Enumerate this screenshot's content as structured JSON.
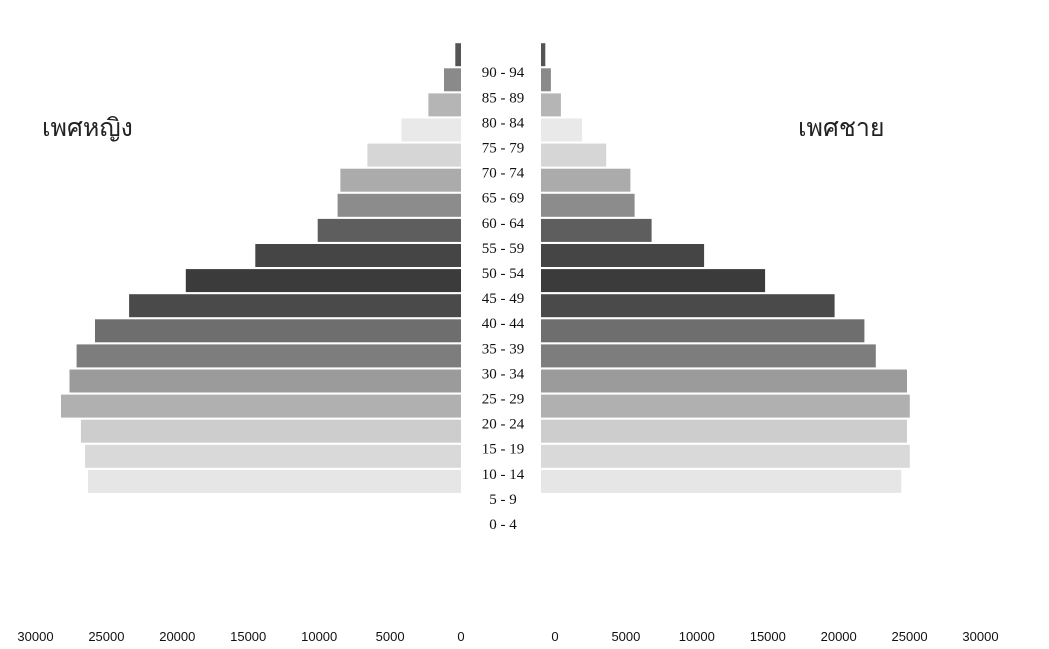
{
  "chart_data": {
    "type": "bar",
    "orientation": "horizontal-population-pyramid",
    "title": "",
    "categories": [
      "0 - 4",
      "5 - 9",
      "10 - 14",
      "15 - 19",
      "20 - 24",
      "25 - 29",
      "30 - 34",
      "35 - 39",
      "40 - 44",
      "45 - 49",
      "50 - 54",
      "55 - 59",
      "60 - 64",
      "65 - 69",
      "70 - 74",
      "75 - 79",
      "80 - 84",
      "85 - 89",
      "90 - 94"
    ],
    "series": [
      {
        "name": "เพศหญิง",
        "side": "left",
        "values": [
          0,
          26300,
          26500,
          26800,
          28200,
          27600,
          27100,
          25800,
          23400,
          19400,
          14500,
          10100,
          8700,
          8500,
          6600,
          4200,
          2300,
          1200,
          400
        ]
      },
      {
        "name": "เพศชาย",
        "side": "right",
        "values": [
          0,
          25400,
          26000,
          25800,
          26000,
          25800,
          23600,
          22800,
          20700,
          15800,
          11500,
          7800,
          6600,
          6300,
          4600,
          2900,
          1400,
          700,
          300
        ]
      }
    ],
    "bar_colors": [
      "#ececec",
      "#e6e6e6",
      "#d9d9d9",
      "#cdcdcd",
      "#b0b0b0",
      "#9b9b9b",
      "#7d7d7d",
      "#6e6e6e",
      "#4a4a4a",
      "#3b3b3b",
      "#454545",
      "#5e5e5e",
      "#8c8c8c",
      "#ababab",
      "#d6d6d6",
      "#e9e9e9",
      "#b5b5b5",
      "#8a8a8a",
      "#555555"
    ],
    "x_ticks_left": [
      "30000",
      "25000",
      "20000",
      "15000",
      "10000",
      "5000",
      "0"
    ],
    "x_ticks_right": [
      "0",
      "5000",
      "10000",
      "15000",
      "20000",
      "25000",
      "30000"
    ],
    "xlim": [
      0,
      30000
    ],
    "grid": false,
    "legend": "none"
  }
}
